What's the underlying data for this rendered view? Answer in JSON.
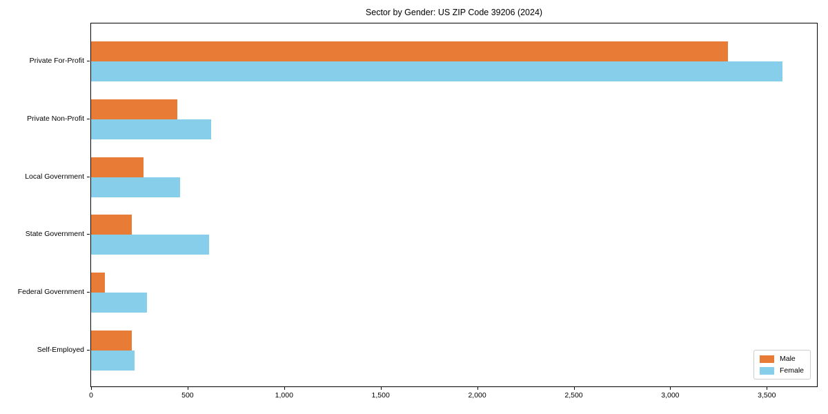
{
  "chart_data": {
    "type": "bar",
    "orientation": "horizontal",
    "title": "Sector by Gender: US ZIP Code 39206 (2024)",
    "categories": [
      "Private For-Profit",
      "Private Non-Profit",
      "Local Government",
      "State Government",
      "Federal Government",
      "Self-Employed"
    ],
    "series": [
      {
        "name": "Male",
        "color": "#e87b35",
        "values": [
          3300,
          445,
          270,
          210,
          70,
          210
        ]
      },
      {
        "name": "Female",
        "color": "#87ceeb",
        "values": [
          3580,
          620,
          460,
          610,
          290,
          225
        ]
      }
    ],
    "xlabel": "",
    "ylabel": "",
    "xlim": [
      0,
      3760
    ],
    "xticks": {
      "values": [
        0,
        500,
        1000,
        1500,
        2000,
        2500,
        3000,
        3500
      ],
      "labels": [
        "0",
        "500",
        "1,000",
        "1,500",
        "2,000",
        "2,500",
        "3,000",
        "3,500"
      ]
    },
    "grid": false,
    "legend": {
      "position": "lower right",
      "entries": [
        "Male",
        "Female"
      ]
    }
  },
  "colors": {
    "axis": "#000000",
    "text": "#000000",
    "background": "#ffffff",
    "legend_border": "#cccccc"
  }
}
